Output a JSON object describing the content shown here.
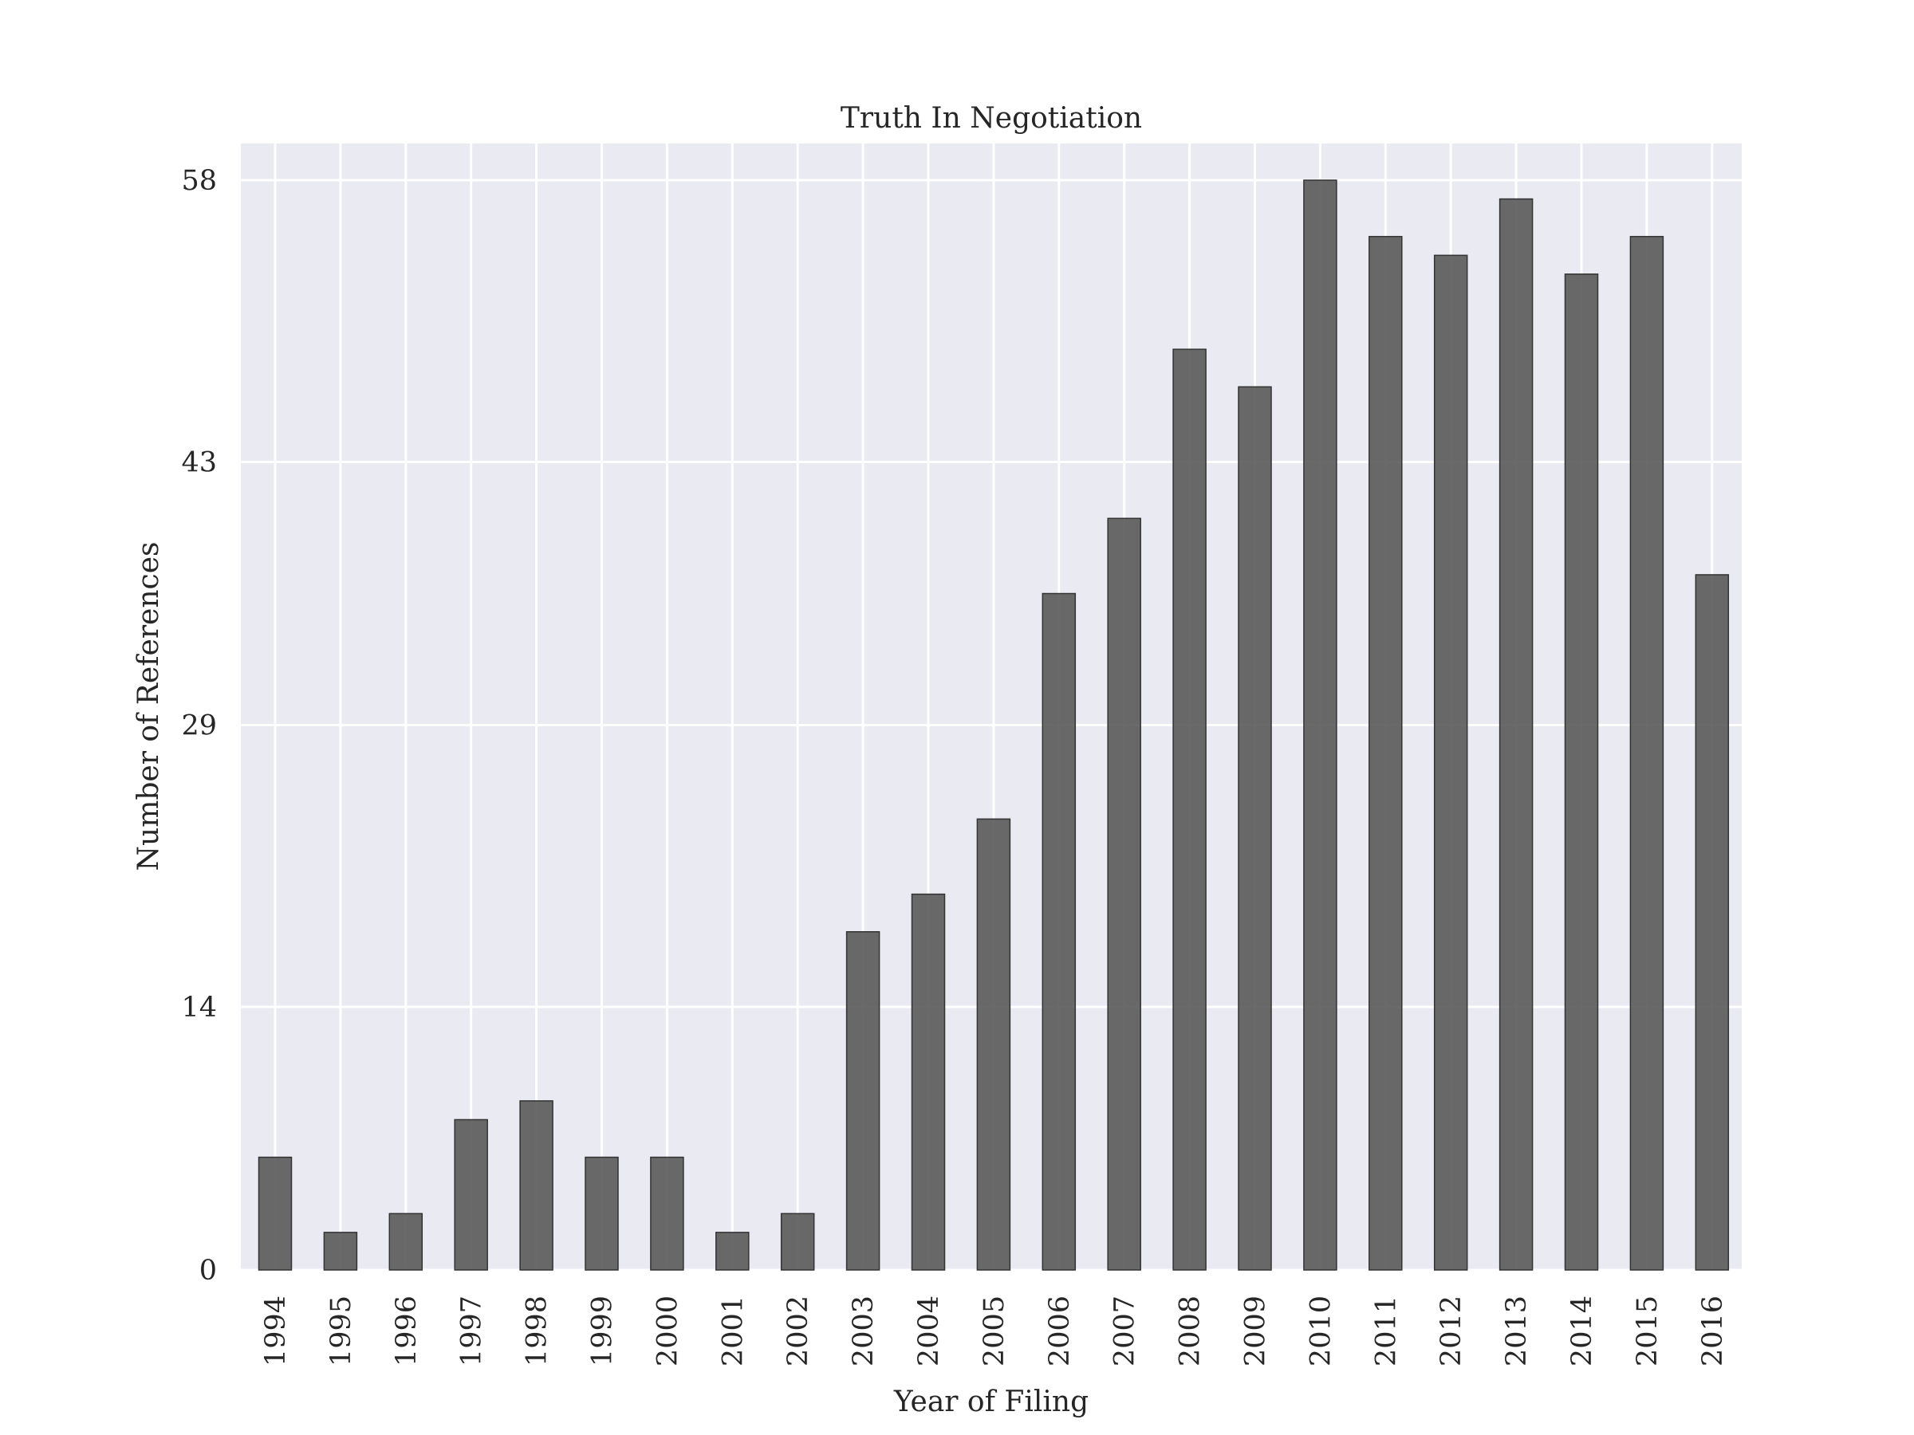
{
  "chart_data": {
    "type": "bar",
    "title": "Truth In Negotiation",
    "xlabel": "Year of Filing",
    "ylabel": "Number of References",
    "categories": [
      "1994",
      "1995",
      "1996",
      "1997",
      "1998",
      "1999",
      "2000",
      "2001",
      "2002",
      "2003",
      "2004",
      "2005",
      "2006",
      "2007",
      "2008",
      "2009",
      "2010",
      "2011",
      "2012",
      "2013",
      "2014",
      "2015",
      "2016"
    ],
    "values": [
      6,
      2,
      3,
      8,
      9,
      6,
      6,
      2,
      3,
      18,
      20,
      24,
      36,
      40,
      49,
      47,
      58,
      55,
      54,
      57,
      53,
      55,
      37
    ],
    "yticks": [
      0,
      14,
      29,
      43,
      58
    ],
    "ylim": [
      0,
      58
    ],
    "grid": true,
    "colors": {
      "background": "#eaeaf2",
      "bar": "#555555",
      "grid": "#ffffff"
    }
  }
}
